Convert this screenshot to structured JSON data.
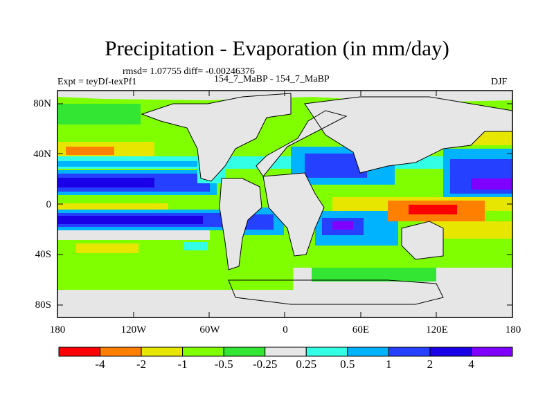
{
  "title": "Precipitation - Evaporation (in mm/day)",
  "stats": "rmsd= 1.07755  diff= -0.00246376",
  "experiment": "Expt = teyDf-texPf1",
  "case": "154_7_MaBP - 154_7_MaBP",
  "season": "DJF",
  "y_ticks": [
    "80N",
    "40N",
    "0",
    "40S",
    "80S"
  ],
  "x_ticks": [
    "180",
    "120W",
    "60W",
    "0",
    "60E",
    "120E",
    "180"
  ],
  "colorbar": {
    "colors": [
      "#ff0000",
      "#ff8000",
      "#e6e600",
      "#80ff00",
      "#33e633",
      "#e6e6e6",
      "#33ffe6",
      "#00b3ff",
      "#2640ff",
      "#1a00e6",
      "#8000ff"
    ],
    "labels": [
      "-4",
      "-2",
      "-1",
      "-0.5",
      "-0.25",
      "0.25",
      "0.5",
      "1",
      "2",
      "4"
    ]
  }
}
